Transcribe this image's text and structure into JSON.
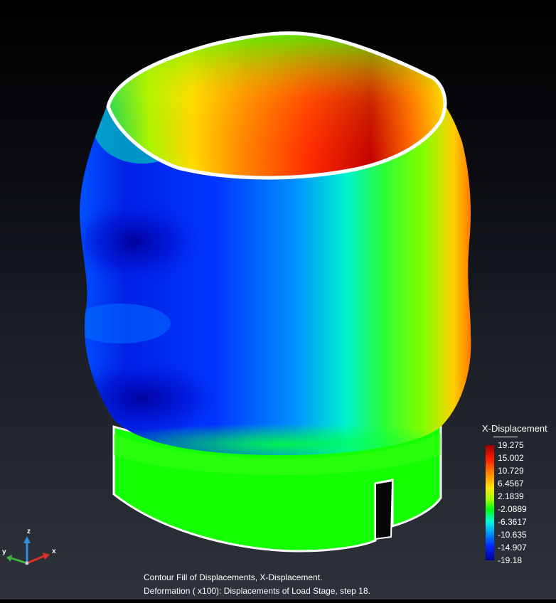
{
  "legend": {
    "title": "X-Displacement",
    "values": [
      "19.275",
      "15.002",
      "10.729",
      "6.4567",
      "2.1839",
      "-2.0889",
      "-6.3617",
      "-10.635",
      "-14.907",
      "-19.18"
    ],
    "colors": [
      "#9a0000",
      "#ff1a00",
      "#ff8a00",
      "#ffe600",
      "#9dff00",
      "#00ff18",
      "#00ffd6",
      "#0099ff",
      "#0026ff",
      "#000090"
    ]
  },
  "caption": {
    "line1": "Contour Fill of Displacements, X-Displacement.",
    "line2": "Deformation ( x100): Displacements of Load Stage, step 18."
  },
  "axes": {
    "z": "z",
    "y": "y",
    "x": "x",
    "colors": {
      "z": "#2f8fd8",
      "y": "#3db83d",
      "x": "#e0302a"
    }
  },
  "model": {
    "rim_color": "#ffffff",
    "ring_color": "#14ff00"
  }
}
